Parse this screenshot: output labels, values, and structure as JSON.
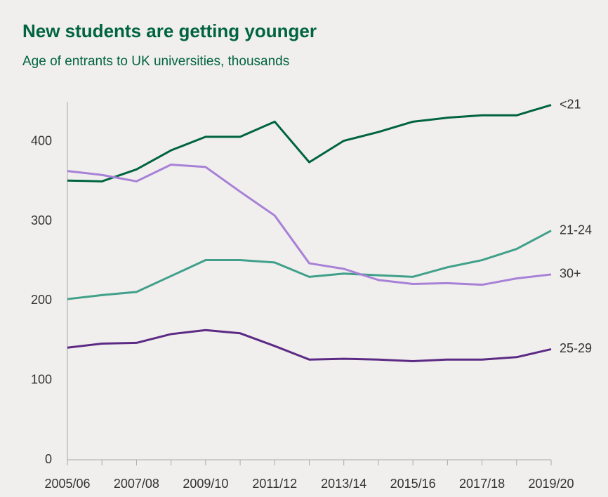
{
  "chart_data": {
    "type": "line",
    "title": "New students are getting younger",
    "subtitle": "Age of entrants to UK universities, thousands",
    "categories": [
      "2005/06",
      null,
      "2007/08",
      null,
      "2009/10",
      null,
      "2011/12",
      null,
      "2013/14",
      null,
      "2015/16",
      null,
      "2017/18",
      null,
      "2019/20"
    ],
    "series": [
      {
        "name": "<21",
        "color": "#00643f",
        "values": [
          351,
          350,
          365,
          389,
          406,
          406,
          425,
          374,
          401,
          412,
          425,
          430,
          433,
          433,
          446
        ]
      },
      {
        "name": "21-24",
        "color": "#41a08a",
        "values": [
          202,
          207,
          211,
          231,
          251,
          251,
          248,
          230,
          234,
          232,
          230,
          242,
          251,
          265,
          288
        ]
      },
      {
        "name": "30+",
        "color": "#a881d6",
        "values": [
          363,
          358,
          350,
          371,
          368,
          337,
          307,
          247,
          240,
          226,
          221,
          222,
          220,
          228,
          233
        ]
      },
      {
        "name": "25-29",
        "color": "#5c2a85",
        "values": [
          141,
          146,
          147,
          158,
          163,
          159,
          143,
          126,
          127,
          126,
          124,
          126,
          126,
          129,
          139
        ]
      }
    ],
    "ylim": [
      0,
      450
    ],
    "yticks": [
      0,
      100,
      200,
      300,
      400
    ],
    "grid": false
  }
}
